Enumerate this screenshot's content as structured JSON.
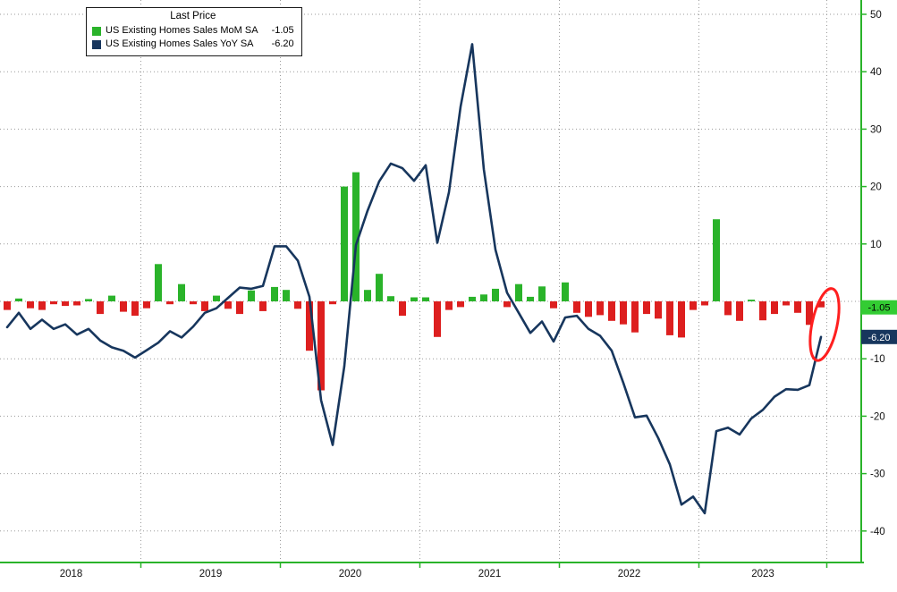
{
  "chart_data": {
    "type": "combo-bar-line",
    "frequency": "monthly",
    "x_start": "2018-01",
    "x_end": "2023-11",
    "legend": {
      "title": "Last Price",
      "items": [
        {
          "label": "US Existing Homes Sales MoM SA",
          "value": "-1.05",
          "color": "#2ab32a"
        },
        {
          "label": "US Existing Homes Sales YoY SA",
          "value": "-6.20",
          "color": "#17365d"
        }
      ]
    },
    "series": [
      {
        "name": "US Existing Homes Sales MoM SA",
        "type": "bar",
        "last": -1.05,
        "values": [
          -1.5,
          0.5,
          -1.2,
          -1.5,
          -0.5,
          -0.8,
          -0.7,
          0.4,
          -2.2,
          1.0,
          -1.8,
          -2.5,
          -1.2,
          6.5,
          -0.5,
          3.0,
          -0.5,
          -1.7,
          1.0,
          -1.3,
          -2.2,
          1.9,
          -1.7,
          2.5,
          2.0,
          -1.3,
          -8.6,
          -15.5,
          -0.5,
          20.0,
          22.5,
          2.0,
          4.8,
          0.9,
          -2.5,
          0.7,
          0.7,
          -6.2,
          -1.5,
          -1.0,
          0.8,
          1.2,
          2.2,
          -1.0,
          3.0,
          0.8,
          2.6,
          -1.2,
          3.3,
          -2.0,
          -2.7,
          -2.4,
          -3.4,
          -4.0,
          -5.4,
          -2.2,
          -3.0,
          -5.9,
          -6.3,
          -1.5,
          -0.7,
          14.3,
          -2.4,
          -3.4,
          0.3,
          -3.3,
          -2.2,
          -0.7,
          -2.0,
          -4.1,
          -1.05
        ]
      },
      {
        "name": "US Existing Homes Sales YoY SA",
        "type": "line",
        "last": -6.2,
        "values": [
          -4.5,
          -2.0,
          -4.8,
          -3.2,
          -4.8,
          -4.0,
          -5.8,
          -4.8,
          -6.8,
          -8.0,
          -8.6,
          -9.8,
          -8.5,
          -7.2,
          -5.2,
          -6.3,
          -4.4,
          -2.0,
          -1.2,
          0.6,
          2.4,
          2.2,
          2.7,
          9.6,
          9.6,
          7.1,
          0.8,
          -17.2,
          -25.0,
          -11.3,
          9.8,
          15.8,
          20.9,
          24.0,
          23.2,
          21.0,
          23.7,
          10.2,
          19.0,
          33.9,
          44.8,
          23.0,
          9.0,
          1.5,
          -2.0,
          -5.5,
          -3.5,
          -7.0,
          -2.8,
          -2.5,
          -4.8,
          -6.0,
          -8.6,
          -14.2,
          -20.2,
          -19.9,
          -23.8,
          -28.4,
          -35.4,
          -34.0,
          -36.9,
          -22.6,
          -22.0,
          -23.2,
          -20.4,
          -18.9,
          -16.6,
          -15.3,
          -15.4,
          -14.6,
          -6.2
        ]
      }
    ],
    "y_axis": {
      "ticks": [
        50,
        40,
        30,
        20,
        10,
        -10,
        -20,
        -30,
        -40
      ],
      "gridlines": [
        50,
        40,
        30,
        20,
        10,
        0,
        -10,
        -20,
        -30,
        -40
      ],
      "range": [
        -45,
        52
      ]
    },
    "x_axis": {
      "years": [
        "2018",
        "2019",
        "2020",
        "2021",
        "2022",
        "2023"
      ],
      "year_start_indices": [
        0,
        12,
        24,
        36,
        48,
        60
      ],
      "last_year_months": 11
    },
    "badges": {
      "mom": "-1.05",
      "yoy": "-6.20"
    },
    "annotation": {
      "type": "ellipse",
      "target": "latest-values"
    },
    "colors": {
      "positive_bar": "#2ab32a",
      "negative_bar": "#dd1f1f",
      "yoy_line": "#17365d",
      "axis": "#2ab32a",
      "grid": "#9a9a9a",
      "tick_text": "#111111",
      "badge_mom_bg": "#33cc33",
      "badge_mom_text": "#000000",
      "badge_yoy_bg": "#17365d",
      "badge_yoy_text": "#ffffff",
      "annotation_color": "#ff1f1f"
    }
  }
}
